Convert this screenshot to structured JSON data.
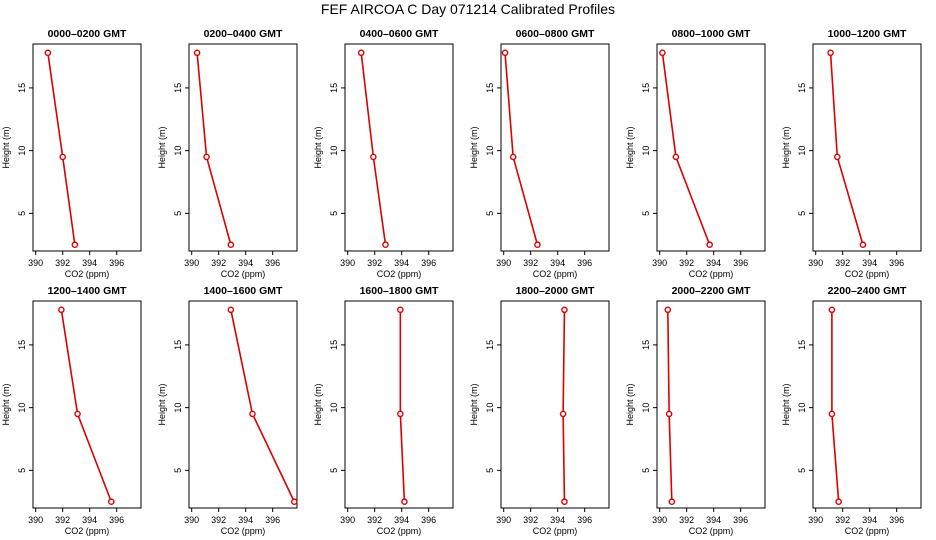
{
  "title": "FEF AIRCOA C  Day 071214  Calibrated Profiles",
  "chart_data": [
    {
      "type": "line",
      "title": "0000–0200 GMT",
      "xlabel": "CO2 (ppm)",
      "ylabel": "Height (m)",
      "xlim": [
        389.8,
        397.8
      ],
      "ylim": [
        2,
        18.5
      ],
      "xticks": [
        390,
        392,
        394,
        396
      ],
      "yticks": [
        5,
        10,
        15
      ],
      "series": [
        {
          "x": [
            392.9,
            392.0,
            390.9
          ],
          "y": [
            2.5,
            9.5,
            17.8
          ]
        }
      ],
      "color": "#dd0000"
    },
    {
      "type": "line",
      "title": "0200–0400 GMT",
      "xlabel": "CO2 (ppm)",
      "ylabel": "Height (m)",
      "xlim": [
        389.8,
        397.8
      ],
      "ylim": [
        2,
        18.5
      ],
      "xticks": [
        390,
        392,
        394,
        396
      ],
      "yticks": [
        5,
        10,
        15
      ],
      "series": [
        {
          "x": [
            392.9,
            391.1,
            390.4
          ],
          "y": [
            2.5,
            9.5,
            17.8
          ]
        }
      ],
      "color": "#dd0000"
    },
    {
      "type": "line",
      "title": "0400–0600 GMT",
      "xlabel": "CO2 (ppm)",
      "ylabel": "Height (m)",
      "xlim": [
        389.8,
        397.8
      ],
      "ylim": [
        2,
        18.5
      ],
      "xticks": [
        390,
        392,
        394,
        396
      ],
      "yticks": [
        5,
        10,
        15
      ],
      "series": [
        {
          "x": [
            392.8,
            391.9,
            391.0
          ],
          "y": [
            2.5,
            9.5,
            17.8
          ]
        }
      ],
      "color": "#dd0000"
    },
    {
      "type": "line",
      "title": "0600–0800 GMT",
      "xlabel": "CO2 (ppm)",
      "ylabel": "Height (m)",
      "xlim": [
        389.8,
        397.8
      ],
      "ylim": [
        2,
        18.5
      ],
      "xticks": [
        390,
        392,
        394,
        396
      ],
      "yticks": [
        5,
        10,
        15
      ],
      "series": [
        {
          "x": [
            392.5,
            390.7,
            390.1
          ],
          "y": [
            2.5,
            9.5,
            17.8
          ]
        }
      ],
      "color": "#dd0000"
    },
    {
      "type": "line",
      "title": "0800–1000 GMT",
      "xlabel": "CO2 (ppm)",
      "ylabel": "Height (m)",
      "xlim": [
        389.8,
        397.8
      ],
      "ylim": [
        2,
        18.5
      ],
      "xticks": [
        390,
        392,
        394,
        396
      ],
      "yticks": [
        5,
        10,
        15
      ],
      "series": [
        {
          "x": [
            393.7,
            391.2,
            390.2
          ],
          "y": [
            2.5,
            9.5,
            17.8
          ]
        }
      ],
      "color": "#dd0000"
    },
    {
      "type": "line",
      "title": "1000–1200 GMT",
      "xlabel": "CO2 (ppm)",
      "ylabel": "Height (m)",
      "xlim": [
        389.8,
        397.8
      ],
      "ylim": [
        2,
        18.5
      ],
      "xticks": [
        390,
        392,
        394,
        396
      ],
      "yticks": [
        5,
        10,
        15
      ],
      "series": [
        {
          "x": [
            393.5,
            391.6,
            391.1
          ],
          "y": [
            2.5,
            9.5,
            17.8
          ]
        }
      ],
      "color": "#dd0000"
    },
    {
      "type": "line",
      "title": "1200–1400 GMT",
      "xlabel": "CO2 (ppm)",
      "ylabel": "Height (m)",
      "xlim": [
        389.8,
        397.8
      ],
      "ylim": [
        2,
        18.5
      ],
      "xticks": [
        390,
        392,
        394,
        396
      ],
      "yticks": [
        5,
        10,
        15
      ],
      "series": [
        {
          "x": [
            395.6,
            393.1,
            391.9
          ],
          "y": [
            2.5,
            9.5,
            17.8
          ]
        }
      ],
      "color": "#dd0000"
    },
    {
      "type": "line",
      "title": "1400–1600 GMT",
      "xlabel": "CO2 (ppm)",
      "ylabel": "Height (m)",
      "xlim": [
        389.8,
        397.8
      ],
      "ylim": [
        2,
        18.5
      ],
      "xticks": [
        390,
        392,
        394,
        396
      ],
      "yticks": [
        5,
        10,
        15
      ],
      "series": [
        {
          "x": [
            397.6,
            394.5,
            392.9
          ],
          "y": [
            2.5,
            9.5,
            17.8
          ]
        }
      ],
      "color": "#dd0000"
    },
    {
      "type": "line",
      "title": "1600–1800 GMT",
      "xlabel": "CO2 (ppm)",
      "ylabel": "Height (m)",
      "xlim": [
        389.8,
        397.8
      ],
      "ylim": [
        2,
        18.5
      ],
      "xticks": [
        390,
        392,
        394,
        396
      ],
      "yticks": [
        5,
        10,
        15
      ],
      "series": [
        {
          "x": [
            394.2,
            393.9,
            393.9
          ],
          "y": [
            2.5,
            9.5,
            17.8
          ]
        }
      ],
      "color": "#dd0000"
    },
    {
      "type": "line",
      "title": "1800–2000 GMT",
      "xlabel": "CO2 (ppm)",
      "ylabel": "Height (m)",
      "xlim": [
        389.8,
        397.8
      ],
      "ylim": [
        2,
        18.5
      ],
      "xticks": [
        390,
        392,
        394,
        396
      ],
      "yticks": [
        5,
        10,
        15
      ],
      "series": [
        {
          "x": [
            394.5,
            394.4,
            394.5
          ],
          "y": [
            2.5,
            9.5,
            17.8
          ]
        }
      ],
      "color": "#dd0000"
    },
    {
      "type": "line",
      "title": "2000–2200 GMT",
      "xlabel": "CO2 (ppm)",
      "ylabel": "Height (m)",
      "xlim": [
        389.8,
        397.8
      ],
      "ylim": [
        2,
        18.5
      ],
      "xticks": [
        390,
        392,
        394,
        396
      ],
      "yticks": [
        5,
        10,
        15
      ],
      "series": [
        {
          "x": [
            390.9,
            390.7,
            390.6
          ],
          "y": [
            2.5,
            9.5,
            17.8
          ]
        }
      ],
      "color": "#dd0000"
    },
    {
      "type": "line",
      "title": "2200–2400 GMT",
      "xlabel": "CO2 (ppm)",
      "ylabel": "Height (m)",
      "xlim": [
        389.8,
        397.8
      ],
      "ylim": [
        2,
        18.5
      ],
      "xticks": [
        390,
        392,
        394,
        396
      ],
      "yticks": [
        5,
        10,
        15
      ],
      "series": [
        {
          "x": [
            391.7,
            391.2,
            391.2
          ],
          "y": [
            2.5,
            9.5,
            17.8
          ]
        }
      ],
      "color": "#dd0000"
    }
  ]
}
